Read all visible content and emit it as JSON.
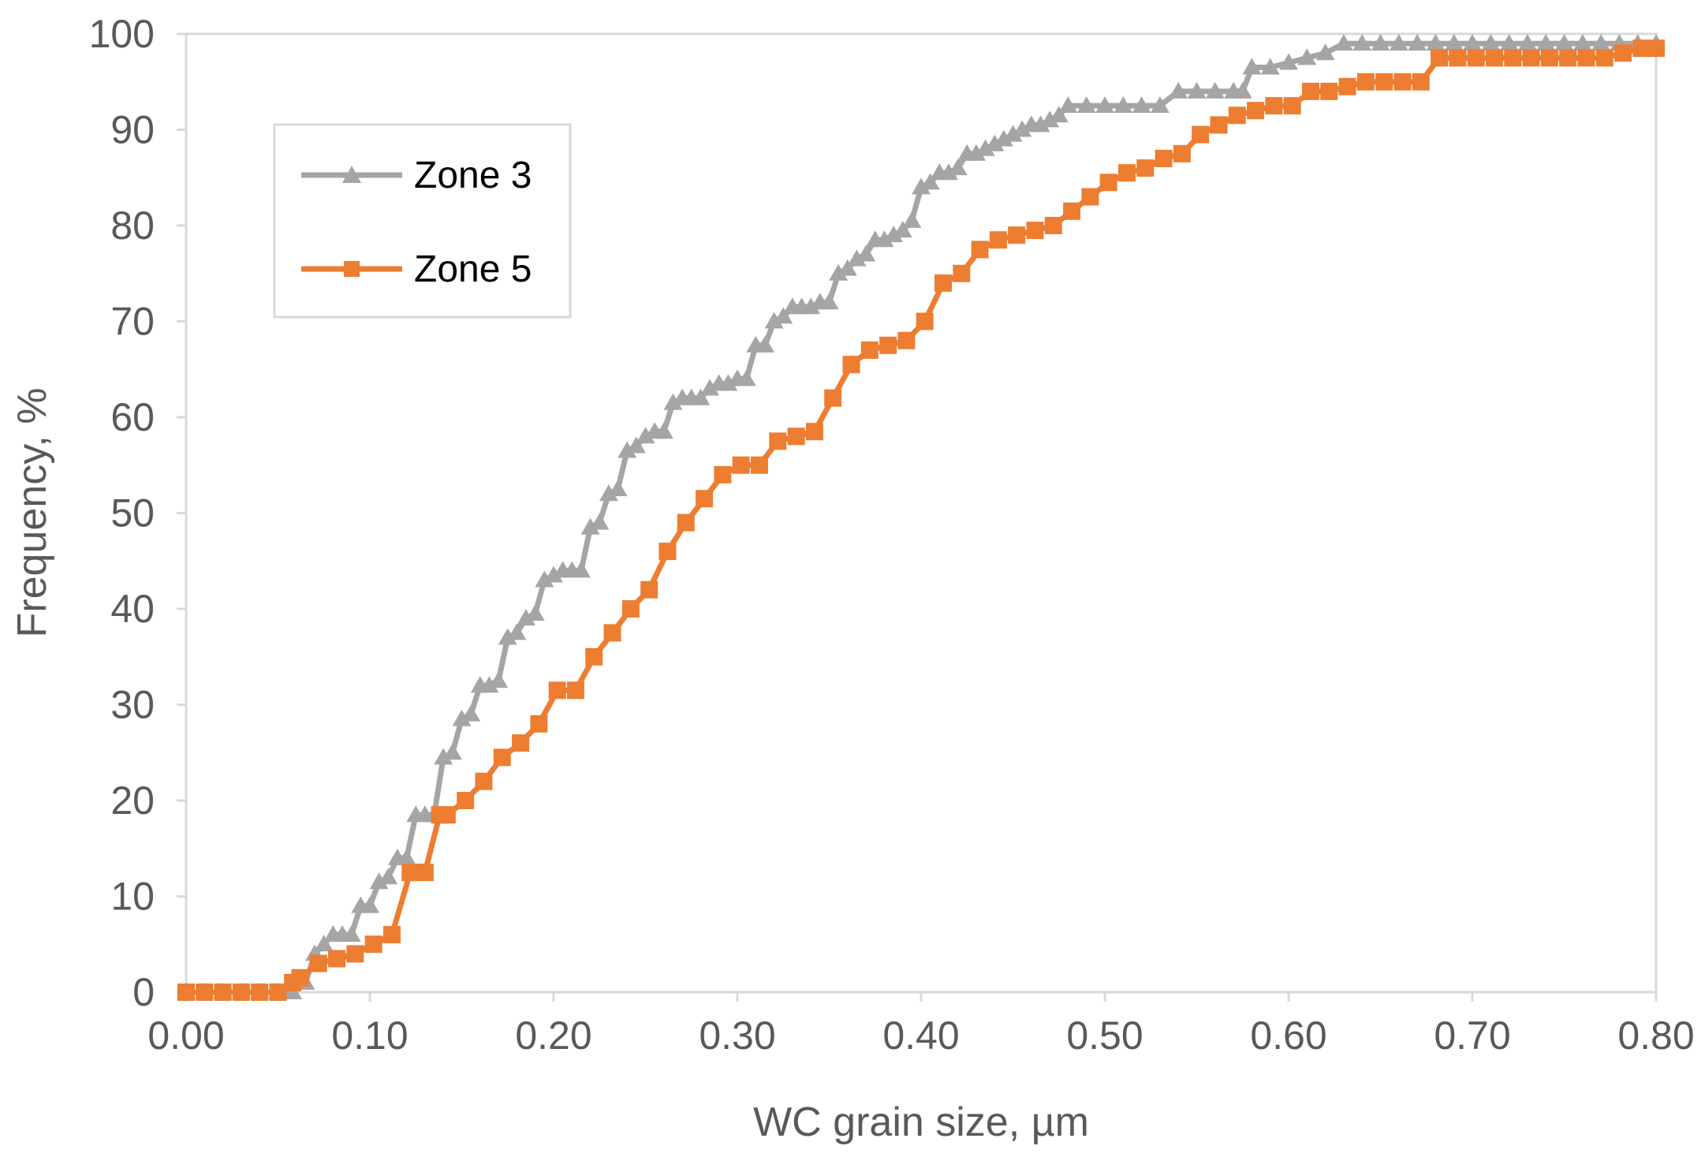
{
  "chart_data": {
    "type": "line",
    "title": "",
    "xlabel": "WC grain size, µm",
    "ylabel": "Frequency, %",
    "xlim": [
      0,
      0.8
    ],
    "ylim": [
      0,
      100
    ],
    "grid": false,
    "legend_position": "top-left",
    "x_ticks": [
      0,
      0.1,
      0.2,
      0.3,
      0.4,
      0.5,
      0.6,
      0.7,
      0.8
    ],
    "x_tick_labels": [
      "0.00",
      "0.10",
      "0.20",
      "0.30",
      "0.40",
      "0.50",
      "0.60",
      "0.70",
      "0.80"
    ],
    "y_ticks": [
      0,
      10,
      20,
      30,
      40,
      50,
      60,
      70,
      80,
      90,
      100
    ],
    "y_tick_labels": [
      "0",
      "10",
      "20",
      "30",
      "40",
      "50",
      "60",
      "70",
      "80",
      "90",
      "100"
    ],
    "series": [
      {
        "name": "Zone 3",
        "color": "#a5a5a5",
        "marker": "triangle",
        "x": [
          0,
          0.01,
          0.02,
          0.03,
          0.04,
          0.05,
          0.058,
          0.065,
          0.07,
          0.075,
          0.08,
          0.085,
          0.09,
          0.095,
          0.1,
          0.105,
          0.11,
          0.115,
          0.12,
          0.125,
          0.13,
          0.135,
          0.14,
          0.145,
          0.15,
          0.155,
          0.16,
          0.165,
          0.17,
          0.175,
          0.18,
          0.185,
          0.19,
          0.195,
          0.2,
          0.205,
          0.21,
          0.215,
          0.22,
          0.225,
          0.23,
          0.235,
          0.24,
          0.245,
          0.25,
          0.255,
          0.26,
          0.265,
          0.27,
          0.275,
          0.28,
          0.285,
          0.29,
          0.295,
          0.3,
          0.305,
          0.31,
          0.315,
          0.32,
          0.325,
          0.33,
          0.335,
          0.34,
          0.345,
          0.35,
          0.355,
          0.36,
          0.365,
          0.37,
          0.375,
          0.38,
          0.385,
          0.39,
          0.395,
          0.4,
          0.405,
          0.41,
          0.415,
          0.42,
          0.425,
          0.43,
          0.435,
          0.44,
          0.445,
          0.45,
          0.455,
          0.46,
          0.465,
          0.47,
          0.475,
          0.48,
          0.49,
          0.5,
          0.51,
          0.52,
          0.53,
          0.54,
          0.55,
          0.56,
          0.57,
          0.575,
          0.58,
          0.59,
          0.6,
          0.61,
          0.62,
          0.63,
          0.64,
          0.65,
          0.66,
          0.67,
          0.68,
          0.69,
          0.7,
          0.71,
          0.72,
          0.73,
          0.74,
          0.75,
          0.76,
          0.77,
          0.78,
          0.79,
          0.8
        ],
        "values": [
          0,
          0,
          0,
          0,
          0,
          0,
          0,
          1,
          4,
          5,
          6,
          6,
          6,
          9,
          9,
          11.5,
          12,
          14,
          14,
          18.5,
          18.5,
          18.5,
          24.5,
          25,
          28.5,
          29,
          32,
          32,
          32.5,
          37,
          37.5,
          39,
          39.5,
          43,
          43.5,
          44,
          44,
          44,
          48.5,
          49,
          52,
          52.5,
          56.5,
          57,
          58,
          58.5,
          58.5,
          61.5,
          62,
          62,
          62,
          63,
          63.5,
          63.5,
          64,
          64,
          67.5,
          67.5,
          70,
          70.5,
          71.5,
          71.5,
          71.5,
          72,
          72,
          75,
          75.5,
          76.5,
          77,
          78.5,
          78.5,
          79,
          79.5,
          80.5,
          84,
          84.5,
          85.5,
          85.5,
          86,
          87.5,
          87.5,
          88,
          88.5,
          89,
          89.5,
          90,
          90.5,
          90.5,
          91,
          91.5,
          92.5,
          92.5,
          92.5,
          92.5,
          92.5,
          92.5,
          94,
          94,
          94,
          94,
          94,
          96.5,
          96.5,
          97,
          97.5,
          98,
          99,
          99,
          99,
          99,
          99,
          99,
          99,
          99,
          99,
          99,
          99,
          99,
          99,
          99,
          99,
          99,
          99,
          99
        ]
      },
      {
        "name": "Zone 5",
        "color": "#ed7d31",
        "marker": "square",
        "x": [
          0,
          0.01,
          0.02,
          0.03,
          0.04,
          0.05,
          0.058,
          0.062,
          0.072,
          0.082,
          0.092,
          0.102,
          0.112,
          0.122,
          0.128,
          0.13,
          0.138,
          0.142,
          0.152,
          0.162,
          0.172,
          0.182,
          0.192,
          0.202,
          0.212,
          0.222,
          0.232,
          0.242,
          0.252,
          0.262,
          0.272,
          0.282,
          0.292,
          0.302,
          0.312,
          0.322,
          0.332,
          0.342,
          0.352,
          0.362,
          0.372,
          0.382,
          0.392,
          0.402,
          0.412,
          0.422,
          0.432,
          0.442,
          0.452,
          0.462,
          0.472,
          0.482,
          0.492,
          0.502,
          0.512,
          0.522,
          0.532,
          0.542,
          0.552,
          0.562,
          0.572,
          0.582,
          0.592,
          0.602,
          0.612,
          0.622,
          0.632,
          0.642,
          0.652,
          0.662,
          0.672,
          0.682,
          0.692,
          0.702,
          0.712,
          0.722,
          0.732,
          0.742,
          0.752,
          0.762,
          0.772,
          0.782,
          0.792,
          0.8
        ],
        "values": [
          0,
          0,
          0,
          0,
          0,
          0,
          1,
          1.5,
          3,
          3.5,
          4,
          5,
          6,
          12.5,
          12.5,
          12.5,
          18.5,
          18.5,
          20,
          22,
          24.5,
          26,
          28,
          31.5,
          31.5,
          35,
          37.5,
          40,
          42,
          46,
          49,
          51.5,
          54,
          55,
          55,
          57.5,
          58,
          58.5,
          62,
          65.5,
          67,
          67.5,
          68,
          70,
          74,
          75,
          77.5,
          78.5,
          79,
          79.5,
          80,
          81.5,
          83,
          84.5,
          85.5,
          86,
          87,
          87.5,
          89.5,
          90.5,
          91.5,
          92,
          92.5,
          92.5,
          94,
          94,
          94.5,
          95,
          95,
          95,
          95,
          97.5,
          97.5,
          97.5,
          97.5,
          97.5,
          97.5,
          97.5,
          97.5,
          97.5,
          97.5,
          98,
          98.5,
          98.5
        ]
      }
    ]
  }
}
